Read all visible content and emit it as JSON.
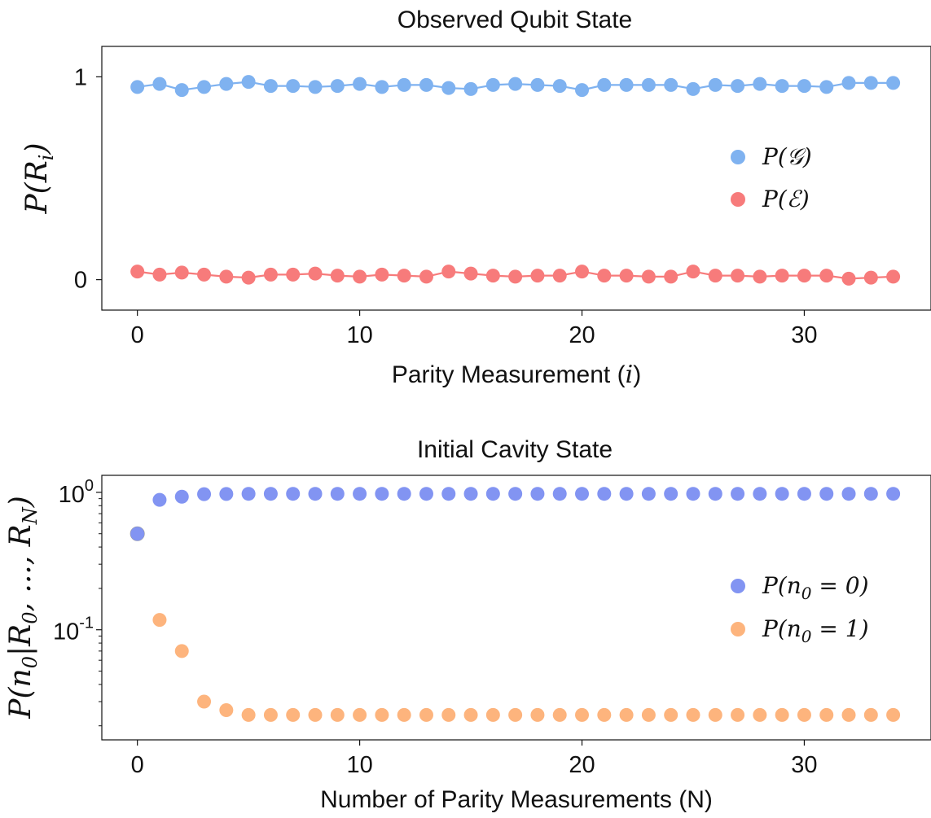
{
  "chart_data": [
    {
      "type": "scatter",
      "title": "Observed Qubit State",
      "xlabel": "Parity Measurement (i)",
      "ylabel": "P(R_i)",
      "xlim": [
        -1.6,
        35.7
      ],
      "ylim": [
        -0.15,
        1.15
      ],
      "xticks": [
        "0",
        "10",
        "20",
        "30"
      ],
      "yticks": [
        "0",
        "1"
      ],
      "grid": false,
      "legend_position": "center-right",
      "x": [
        0,
        1,
        2,
        3,
        4,
        5,
        6,
        7,
        8,
        9,
        10,
        11,
        12,
        13,
        14,
        15,
        16,
        17,
        18,
        19,
        20,
        21,
        22,
        23,
        24,
        25,
        26,
        27,
        28,
        29,
        30,
        31,
        32,
        33,
        34
      ],
      "series": [
        {
          "name": "P(𝒢)",
          "color": "#7FB2F0",
          "line": true,
          "values": [
            0.95,
            0.965,
            0.935,
            0.95,
            0.965,
            0.975,
            0.955,
            0.955,
            0.95,
            0.955,
            0.965,
            0.95,
            0.96,
            0.96,
            0.945,
            0.94,
            0.96,
            0.965,
            0.96,
            0.955,
            0.935,
            0.96,
            0.96,
            0.96,
            0.96,
            0.94,
            0.96,
            0.955,
            0.965,
            0.955,
            0.955,
            0.95,
            0.97,
            0.97,
            0.97
          ]
        },
        {
          "name": "P(ℰ)",
          "color": "#F77B7B",
          "line": true,
          "values": [
            0.04,
            0.025,
            0.035,
            0.025,
            0.015,
            0.01,
            0.025,
            0.025,
            0.03,
            0.02,
            0.015,
            0.025,
            0.02,
            0.015,
            0.04,
            0.03,
            0.02,
            0.015,
            0.02,
            0.02,
            0.04,
            0.02,
            0.02,
            0.015,
            0.015,
            0.04,
            0.02,
            0.02,
            0.015,
            0.02,
            0.02,
            0.02,
            0.005,
            0.01,
            0.015
          ]
        }
      ]
    },
    {
      "type": "scatter",
      "title": "Initial Cavity State",
      "xlabel": "Number of Parity Measurements (N)",
      "ylabel": "P(n0|R0, ..., RN)",
      "yscale": "log",
      "xlim": [
        -1.6,
        35.7
      ],
      "ylim": [
        0.0158,
        1.33
      ],
      "xticks": [
        "0",
        "10",
        "20",
        "30"
      ],
      "yticks": [
        {
          "base": "10",
          "exp": "0"
        },
        {
          "base": "10",
          "exp": "-1"
        }
      ],
      "grid": false,
      "legend_position": "center-right",
      "x": [
        0,
        1,
        2,
        3,
        4,
        5,
        6,
        7,
        8,
        9,
        10,
        11,
        12,
        13,
        14,
        15,
        16,
        17,
        18,
        19,
        20,
        21,
        22,
        23,
        24,
        25,
        26,
        27,
        28,
        29,
        30,
        31,
        32,
        33,
        34
      ],
      "series": [
        {
          "name": "P(n0 = 0)",
          "color": "#8294F2",
          "line": false,
          "values": [
            0.5,
            0.882,
            0.93,
            0.97,
            0.974,
            0.976,
            0.976,
            0.976,
            0.976,
            0.976,
            0.976,
            0.976,
            0.976,
            0.976,
            0.976,
            0.976,
            0.976,
            0.976,
            0.976,
            0.976,
            0.976,
            0.976,
            0.976,
            0.976,
            0.976,
            0.976,
            0.976,
            0.976,
            0.976,
            0.976,
            0.976,
            0.976,
            0.976,
            0.976,
            0.976
          ]
        },
        {
          "name": "P(n0 = 1)",
          "color": "#FDB47D",
          "line": false,
          "values": [
            0.5,
            0.118,
            0.07,
            0.03,
            0.026,
            0.024,
            0.024,
            0.024,
            0.024,
            0.024,
            0.024,
            0.024,
            0.024,
            0.024,
            0.024,
            0.024,
            0.024,
            0.024,
            0.024,
            0.024,
            0.024,
            0.024,
            0.024,
            0.024,
            0.024,
            0.024,
            0.024,
            0.024,
            0.024,
            0.024,
            0.024,
            0.024,
            0.024,
            0.024,
            0.024
          ]
        }
      ]
    }
  ]
}
